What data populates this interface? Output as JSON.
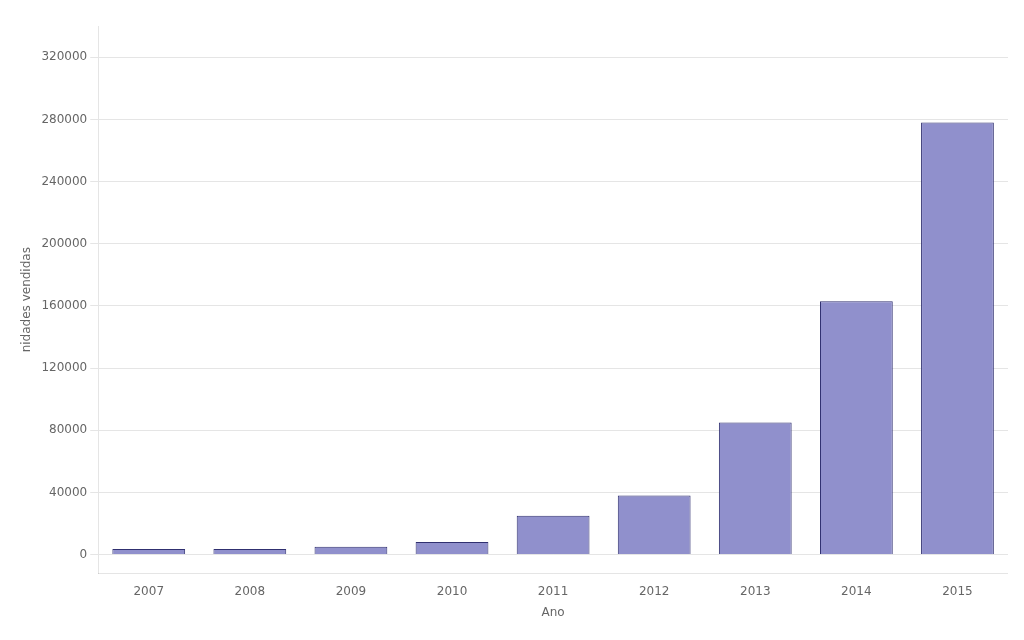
{
  "chart_data": {
    "type": "bar",
    "categories": [
      "2007",
      "2008",
      "2009",
      "2010",
      "2011",
      "2012",
      "2013",
      "2014",
      "2015"
    ],
    "values": [
      3500,
      3500,
      5000,
      8000,
      25000,
      38000,
      85000,
      163000,
      278000
    ],
    "color": "#9090cc",
    "xlabel": "Ano",
    "ylabel": "nidades vendidas",
    "ylim": [
      -12000,
      340000
    ],
    "yticks": [
      0,
      40000,
      80000,
      120000,
      160000,
      200000,
      240000,
      280000,
      320000
    ],
    "grid": true
  }
}
